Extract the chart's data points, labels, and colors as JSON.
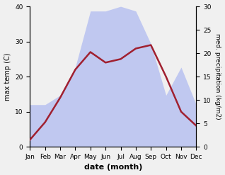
{
  "months": [
    "Jan",
    "Feb",
    "Mar",
    "Apr",
    "May",
    "Jun",
    "Jul",
    "Aug",
    "Sep",
    "Oct",
    "Nov",
    "Dec"
  ],
  "temperature": [
    2,
    7,
    14,
    22,
    27,
    24,
    25,
    28,
    29,
    20,
    10,
    6
  ],
  "precipitation": [
    9,
    9,
    11,
    17,
    29,
    29,
    30,
    29,
    22,
    11,
    17,
    9
  ],
  "temp_color": "#a02030",
  "precip_color_fill": "#c0c8f0",
  "xlabel": "date (month)",
  "ylabel_left": "max temp (C)",
  "ylabel_right": "med. precipitation (kg/m2)",
  "ylim_left": [
    0,
    40
  ],
  "ylim_right": [
    0,
    30
  ],
  "yticks_left": [
    0,
    10,
    20,
    30,
    40
  ],
  "yticks_right": [
    0,
    5,
    10,
    15,
    20,
    25,
    30
  ],
  "background_color": "#f0f0f0",
  "plot_bg_color": "#ffffff"
}
